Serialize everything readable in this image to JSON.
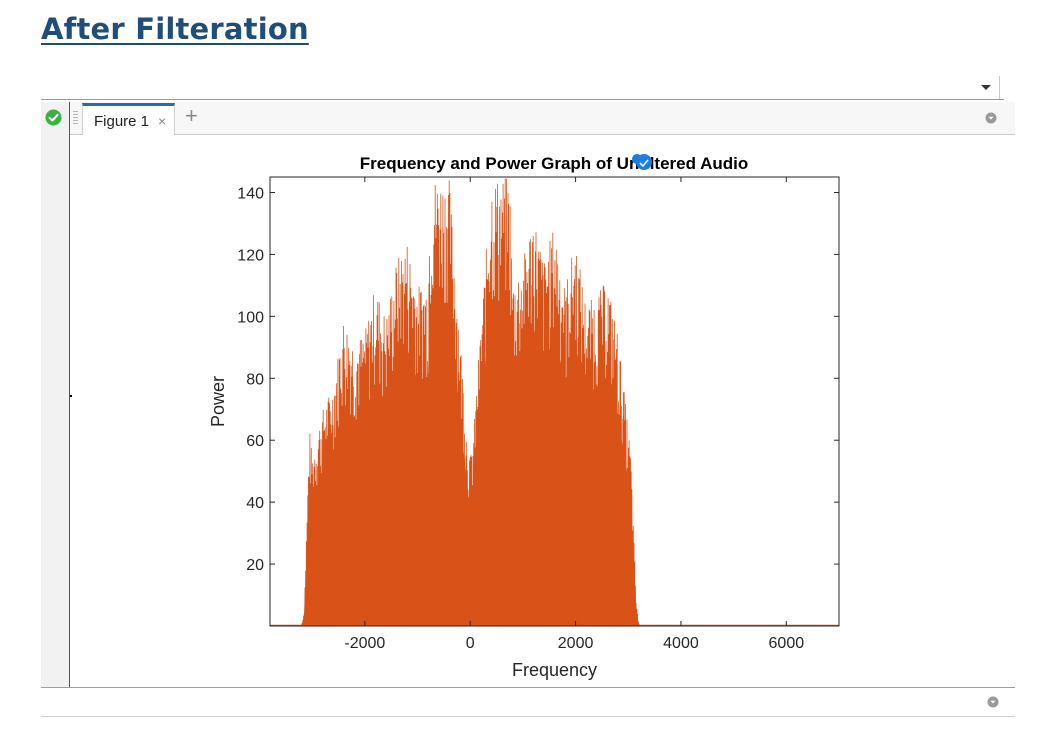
{
  "heading": "After Filteration",
  "tab": {
    "label": "Figure 1",
    "close": "×",
    "add": "+"
  },
  "icons": {
    "status": "check-circle-icon",
    "dropdown": "chevron-down-icon",
    "tab_menu": "circle-menu-icon",
    "grip": "grip-icon"
  },
  "colors": {
    "heading": "#1f4e79",
    "series": "#d95319",
    "tab_accent": "#1f6fb5",
    "status_ok": "#3cb043"
  },
  "chart_data": {
    "type": "line",
    "title": "Frequency and Power  Graph of Unfiltered Audio",
    "xlabel": "Frequency",
    "ylabel": "Power",
    "xlim": [
      -3800,
      7000
    ],
    "ylim": [
      0,
      145
    ],
    "xticks": [
      -2000,
      0,
      2000,
      4000,
      6000
    ],
    "xtick_labels": [
      "-2000",
      "0",
      "2000",
      "4000",
      "6000"
    ],
    "yticks": [
      20,
      40,
      60,
      80,
      100,
      120,
      140
    ],
    "ytick_labels": [
      "20",
      "40",
      "60",
      "80",
      "100",
      "120",
      "140"
    ],
    "grid": false,
    "series": [
      {
        "color": "#d95319",
        "envelope": {
          "x": [
            -3800,
            -3200,
            -3150,
            -3050,
            -3000,
            -2800,
            -2600,
            -2400,
            -2200,
            -2000,
            -1800,
            -1600,
            -1400,
            -1200,
            -1000,
            -800,
            -750,
            -400,
            -50,
            0,
            50,
            400,
            750,
            800,
            1000,
            1200,
            1400,
            1600,
            1800,
            2000,
            2200,
            2400,
            2600,
            2800,
            3000,
            3050,
            3150,
            3200,
            7000
          ],
          "y": [
            0,
            0,
            5,
            64,
            55,
            70,
            78,
            100,
            92,
            95,
            110,
            100,
            118,
            125,
            110,
            112,
            145,
            145,
            60,
            55,
            60,
            145,
            145,
            112,
            118,
            134,
            118,
            130,
            110,
            125,
            104,
            107,
            112,
            95,
            64,
            55,
            8,
            0,
            0
          ]
        }
      }
    ]
  }
}
